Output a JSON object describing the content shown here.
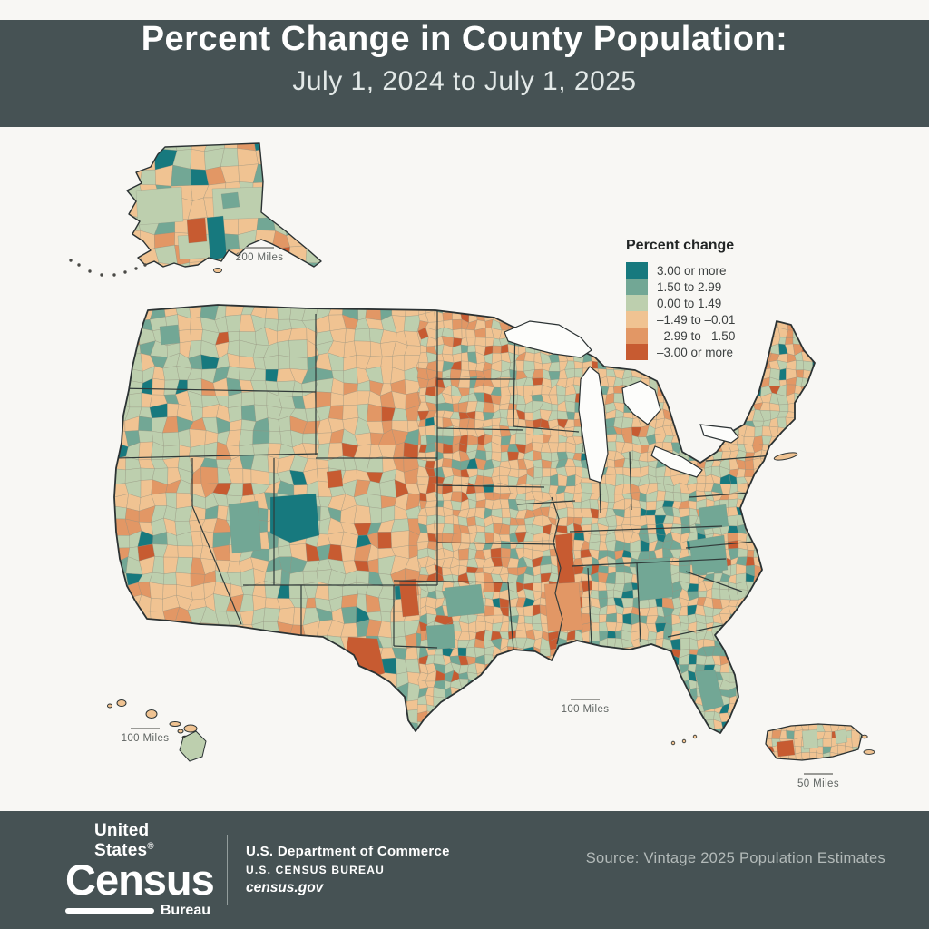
{
  "header": {
    "title": "Percent Change in County Population:",
    "subtitle": "July 1, 2024 to July 1, 2025"
  },
  "legend": {
    "title": "Percent change",
    "items": [
      {
        "label": "3.00 or more",
        "color": "#17797e"
      },
      {
        "label": "1.50 to 2.99",
        "color": "#72a795"
      },
      {
        "label": "0.00 to 1.49",
        "color": "#bdcfae"
      },
      {
        "label": "–1.49 to –0.01",
        "color": "#f0c392"
      },
      {
        "label": "–2.99 to –1.50",
        "color": "#e29765"
      },
      {
        "label": "–3.00 or more",
        "color": "#c75b31"
      }
    ]
  },
  "insets": {
    "alaska": {
      "scale_label": "200 Miles"
    },
    "hawaii": {
      "scale_label": "100 Miles"
    },
    "conus": {
      "scale_label": "100 Miles"
    },
    "puerto_rico": {
      "scale_label": "50 Miles"
    }
  },
  "footer": {
    "logo": {
      "top": "United States",
      "reg": "®",
      "name": "Census",
      "bureau": "Bureau"
    },
    "commerce_line1": "U.S. Department of Commerce",
    "commerce_line2": "U.S. CENSUS BUREAU",
    "commerce_line3": "census.gov",
    "source": "Source: Vintage 2025 Population Estimates"
  },
  "colors": {
    "band_background": "#465254",
    "page_background": "#f8f7f4",
    "map_outline": "#2b3233",
    "county_line": "#8e8e7e"
  }
}
